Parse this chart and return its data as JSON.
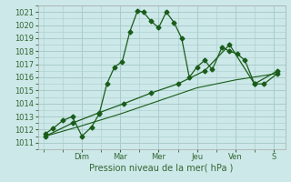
{
  "xlabel": "Pression niveau de la mer( hPa )",
  "bg_color": "#cce8e8",
  "grid_color": "#aacccc",
  "line_color": "#1a5c1a",
  "ylim": [
    1010.5,
    1021.5
  ],
  "xlim": [
    -0.15,
    6.3
  ],
  "day_labels": [
    "Dim",
    "Mar",
    "Mer",
    "Jeu",
    "Ven",
    "S"
  ],
  "day_positions": [
    1.0,
    2.0,
    3.0,
    4.0,
    5.0,
    6.0
  ],
  "series1_x": [
    0.05,
    0.25,
    0.5,
    0.75,
    1.0,
    1.25,
    1.45,
    1.65,
    1.85,
    2.05,
    2.25,
    2.45,
    2.6,
    2.8,
    3.0,
    3.2,
    3.4,
    3.6,
    3.8,
    4.0,
    4.2,
    4.4,
    4.65,
    4.85,
    5.05,
    5.25,
    5.5,
    5.75,
    6.1
  ],
  "series1_y": [
    1011.7,
    1012.1,
    1012.7,
    1013.0,
    1011.5,
    1012.2,
    1013.2,
    1015.5,
    1016.8,
    1017.2,
    1019.5,
    1021.1,
    1021.0,
    1020.3,
    1019.8,
    1021.0,
    1020.2,
    1019.0,
    1016.0,
    1016.8,
    1017.3,
    1016.6,
    1018.3,
    1018.0,
    1017.8,
    1017.3,
    1015.5,
    1015.5,
    1016.3
  ],
  "series2_x": [
    0.05,
    0.75,
    1.45,
    2.1,
    2.8,
    3.5,
    4.2,
    4.85,
    5.5,
    6.1
  ],
  "series2_y": [
    1011.5,
    1012.5,
    1013.3,
    1014.0,
    1014.8,
    1015.5,
    1016.5,
    1018.5,
    1015.5,
    1016.5
  ],
  "series3_x": [
    0.05,
    1.0,
    2.0,
    3.0,
    4.0,
    5.0,
    6.1
  ],
  "series3_y": [
    1011.5,
    1012.3,
    1013.2,
    1014.2,
    1015.2,
    1015.8,
    1016.3
  ],
  "yticks": [
    1011,
    1012,
    1013,
    1014,
    1015,
    1016,
    1017,
    1018,
    1019,
    1020,
    1021
  ],
  "label_fontsize": 7,
  "tick_fontsize": 6,
  "marker_size": 2.5
}
